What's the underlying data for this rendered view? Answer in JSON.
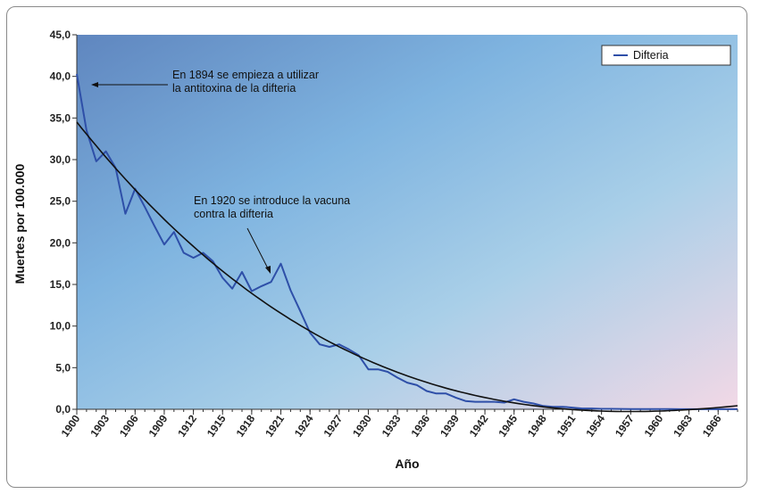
{
  "chart_data": {
    "type": "line",
    "xlabel": "Año",
    "ylabel": "Muertes por 100.000",
    "xlim": [
      1900,
      1968
    ],
    "ylim": [
      0,
      45
    ],
    "y_ticks": [
      "0,0",
      "5,0",
      "10,0",
      "15,0",
      "20,0",
      "25,0",
      "30,0",
      "35,0",
      "40,0",
      "45,0"
    ],
    "x_ticks": [
      "1900",
      "1903",
      "1906",
      "1909",
      "1912",
      "1915",
      "1918",
      "1921",
      "1924",
      "1927",
      "1930",
      "1933",
      "1936",
      "1939",
      "1942",
      "1945",
      "1948",
      "1951",
      "1954",
      "1957",
      "1960",
      "1963",
      "1966"
    ],
    "legend": {
      "position": "top-right",
      "entries": [
        "Difteria"
      ]
    },
    "series": [
      {
        "name": "Difteria",
        "color": "#2e4fa8",
        "x": [
          1900,
          1901,
          1902,
          1903,
          1904,
          1905,
          1906,
          1907,
          1908,
          1909,
          1910,
          1911,
          1912,
          1913,
          1914,
          1915,
          1916,
          1917,
          1918,
          1919,
          1920,
          1921,
          1922,
          1923,
          1924,
          1925,
          1926,
          1927,
          1928,
          1929,
          1930,
          1931,
          1932,
          1933,
          1934,
          1935,
          1936,
          1937,
          1938,
          1939,
          1940,
          1941,
          1942,
          1943,
          1944,
          1945,
          1946,
          1947,
          1948,
          1949,
          1950,
          1951,
          1952,
          1953,
          1954,
          1955,
          1956,
          1957,
          1958,
          1959,
          1960,
          1961,
          1962,
          1963,
          1964,
          1965,
          1966,
          1967,
          1968
        ],
        "y": [
          40.3,
          33.5,
          29.8,
          31.0,
          29.0,
          23.5,
          26.5,
          24.3,
          22.0,
          19.8,
          21.3,
          18.8,
          18.2,
          18.8,
          17.8,
          15.8,
          14.5,
          16.5,
          14.2,
          14.8,
          15.3,
          17.5,
          14.3,
          11.8,
          9.2,
          7.8,
          7.5,
          7.8,
          7.2,
          6.5,
          4.8,
          4.8,
          4.5,
          3.8,
          3.2,
          2.9,
          2.2,
          1.9,
          1.9,
          1.4,
          1.0,
          0.9,
          0.9,
          0.9,
          0.8,
          1.2,
          0.9,
          0.7,
          0.4,
          0.3,
          0.3,
          0.2,
          0.1,
          0.1,
          0.05,
          0.05,
          0.04,
          0.03,
          0.03,
          0.02,
          0.02,
          0.02,
          0.01,
          0.01,
          0.01,
          0.01,
          0.01,
          0.01,
          0.01
        ]
      }
    ],
    "trendline": {
      "type": "polynomial",
      "color": "#111111"
    },
    "annotations": [
      {
        "line1": "En 1894 se empieza a utilizar",
        "line2": "la antitoxina de la difteria"
      },
      {
        "line1": "En 1920 se introduce la vacuna",
        "line2": "contra la difteria"
      }
    ]
  }
}
